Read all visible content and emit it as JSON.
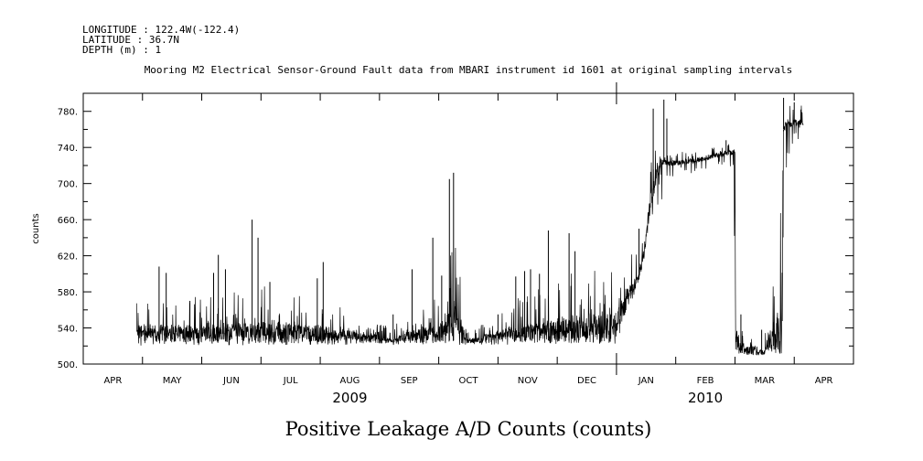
{
  "header": {
    "longitude": "LONGITUDE : 122.4W(-122.4)",
    "latitude": "LATITUDE : 36.7N",
    "depth": "DEPTH (m) : 1"
  },
  "chart_data": {
    "type": "line",
    "title": "Mooring M2 Electrical Sensor-Ground Fault data from MBARI instrument id 1601 at original sampling intervals",
    "xlabel": "Positive Leakage A/D Counts (counts)",
    "ylabel": "counts",
    "ylim": [
      500,
      800
    ],
    "yticks": [
      500,
      540,
      580,
      620,
      660,
      700,
      740,
      780
    ],
    "xlim_months": [
      0,
      13
    ],
    "xtick_labels": [
      "APR",
      "MAY",
      "JUN",
      "JUL",
      "AUG",
      "SEP",
      "OCT",
      "NOV",
      "DEC",
      "JAN",
      "FEB",
      "MAR",
      "APR"
    ],
    "year_labels": [
      {
        "label": "2009",
        "at_month": 4.5
      },
      {
        "label": "2010",
        "at_month": 10.5
      }
    ],
    "year_divider_month": 9,
    "series": [
      {
        "name": "Positive Leakage",
        "baseline": [
          [
            0.9,
            526
          ],
          [
            2.0,
            525
          ],
          [
            4.0,
            525
          ],
          [
            6.0,
            526
          ],
          [
            8.0,
            526
          ],
          [
            8.95,
            526
          ],
          [
            9.05,
            540
          ],
          [
            9.15,
            560
          ],
          [
            9.3,
            575
          ],
          [
            9.45,
            610
          ],
          [
            9.6,
            680
          ],
          [
            9.75,
            725
          ],
          [
            9.9,
            722
          ],
          [
            10.3,
            725
          ],
          [
            10.8,
            733
          ],
          [
            11.0,
            735
          ],
          [
            11.01,
            512
          ],
          [
            11.5,
            513
          ],
          [
            11.8,
            513
          ],
          [
            11.81,
            760
          ],
          [
            12.0,
            768
          ],
          [
            12.15,
            766
          ]
        ],
        "envelope_max": [
          [
            1.3,
            590
          ],
          [
            2.2,
            600
          ],
          [
            3.1,
            615
          ],
          [
            3.9,
            595
          ],
          [
            5.2,
            548
          ],
          [
            6.05,
            600
          ],
          [
            6.25,
            705
          ],
          [
            6.5,
            540
          ],
          [
            7.45,
            600
          ],
          [
            7.9,
            615
          ],
          [
            8.25,
            640
          ],
          [
            9.4,
            650
          ],
          [
            9.6,
            775
          ],
          [
            9.75,
            740
          ],
          [
            10.4,
            740
          ],
          [
            10.9,
            748
          ],
          [
            11.1,
            555
          ],
          [
            11.5,
            535
          ],
          [
            11.85,
            795
          ],
          [
            12.1,
            795
          ]
        ],
        "envelope_min": [
          [
            0.9,
            520
          ],
          [
            9.0,
            522
          ],
          [
            9.6,
            660
          ],
          [
            10.0,
            705
          ],
          [
            10.9,
            720
          ],
          [
            11.05,
            510
          ],
          [
            11.8,
            510
          ],
          [
            11.85,
            715
          ],
          [
            12.15,
            760
          ]
        ],
        "spikes": [
          [
            1.28,
            608
          ],
          [
            1.4,
            601
          ],
          [
            1.8,
            570
          ],
          [
            2.2,
            601
          ],
          [
            2.28,
            621
          ],
          [
            2.4,
            605
          ],
          [
            2.85,
            660
          ],
          [
            2.95,
            640
          ],
          [
            3.15,
            591
          ],
          [
            3.95,
            595
          ],
          [
            4.05,
            613
          ],
          [
            5.23,
            555
          ],
          [
            5.55,
            605
          ],
          [
            5.9,
            640
          ],
          [
            6.05,
            598
          ],
          [
            6.18,
            705
          ],
          [
            6.25,
            712
          ],
          [
            7.0,
            555
          ],
          [
            7.3,
            597
          ],
          [
            7.45,
            603
          ],
          [
            7.55,
            605
          ],
          [
            7.7,
            600
          ],
          [
            7.85,
            648
          ],
          [
            8.2,
            645
          ],
          [
            8.3,
            625
          ],
          [
            9.38,
            650
          ],
          [
            9.62,
            783
          ],
          [
            9.8,
            793
          ],
          [
            9.85,
            772
          ],
          [
            10.85,
            748
          ],
          [
            11.1,
            555
          ],
          [
            11.45,
            538
          ],
          [
            11.82,
            795
          ],
          [
            12.0,
            790
          ]
        ]
      }
    ]
  }
}
